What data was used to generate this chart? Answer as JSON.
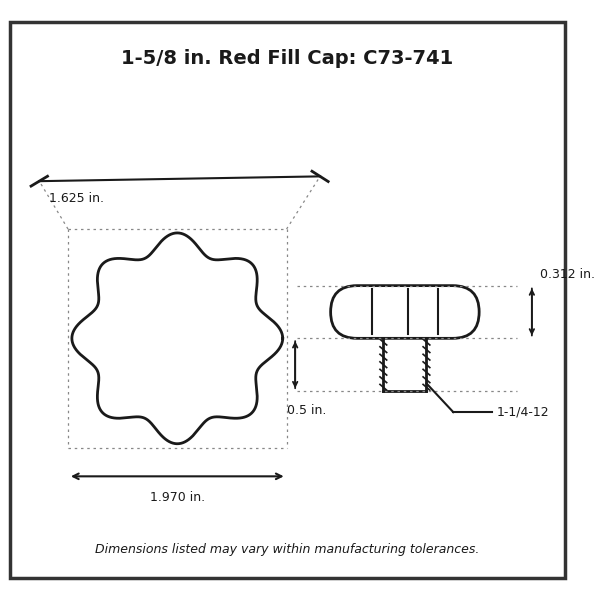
{
  "title": "1-5/8 in. Red Fill Cap: C73-741",
  "title_fontsize": 14,
  "dim_text_1": "1.625 in.",
  "dim_text_2": "1.970 in.",
  "dim_text_3": "0.312 in.",
  "dim_text_4": "0.5 in.",
  "dim_text_5": "1-1/4-12",
  "footer": "Dimensions listed may vary within manufacturing tolerances.",
  "bg_color": "#ffffff",
  "line_color": "#1a1a1a",
  "dot_line_color": "#888888",
  "border_color": "#333333"
}
